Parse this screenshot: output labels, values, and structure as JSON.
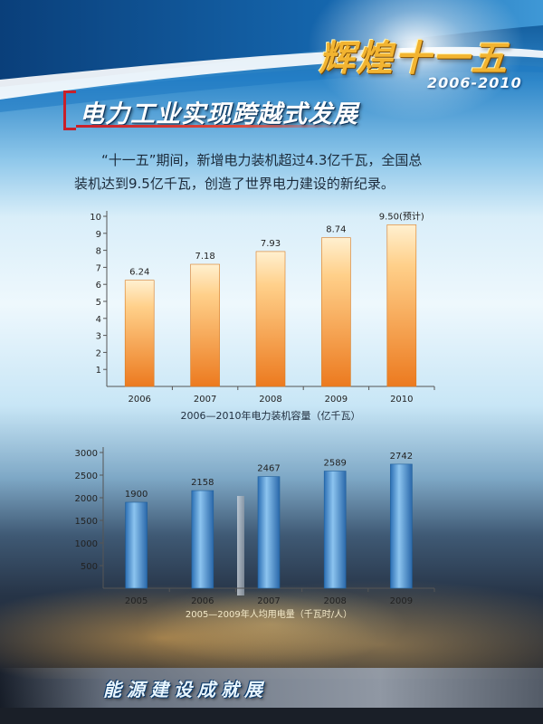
{
  "brand": {
    "main": "辉煌十一五",
    "years": "2006-2010"
  },
  "title": "电力工业实现跨越式发展",
  "intro": [
    "“十一五”期间，新增电力装机超过4.3亿千瓦，全国总",
    "装机达到9.5亿千瓦，创造了世界电力建设的新纪录。"
  ],
  "colors": {
    "bar_orange_top": "#ffd89a",
    "bar_orange_bottom": "#ee7a1e",
    "bar_blue": "#3f86c8",
    "title_red": "#c8202a"
  },
  "chart_data": [
    {
      "type": "bar",
      "categories": [
        "2006",
        "2007",
        "2008",
        "2009",
        "2010"
      ],
      "values": [
        6.24,
        7.18,
        7.93,
        8.74,
        9.5
      ],
      "value_labels": [
        "6.24",
        "7.18",
        "7.93",
        "8.74",
        "9.50(预计)"
      ],
      "xlabel": "2006—2010年电力装机容量（亿千瓦）",
      "ylim": [
        0,
        10
      ],
      "yticks": [
        1,
        2,
        3,
        4,
        5,
        6,
        7,
        8,
        9,
        10
      ],
      "grid": false
    },
    {
      "type": "bar",
      "categories": [
        "2005",
        "2006",
        "2007",
        "2008",
        "2009"
      ],
      "values": [
        1900,
        2158,
        2467,
        2589,
        2742
      ],
      "value_labels": [
        "1900",
        "2158",
        "2467",
        "2589",
        "2742"
      ],
      "xlabel": "2005—2009年人均用电量（千瓦时/人）",
      "ylim": [
        0,
        3000
      ],
      "yticks": [
        500,
        1000,
        1500,
        2000,
        2500,
        3000
      ],
      "grid": false
    }
  ],
  "banner": "能源建设成就展"
}
